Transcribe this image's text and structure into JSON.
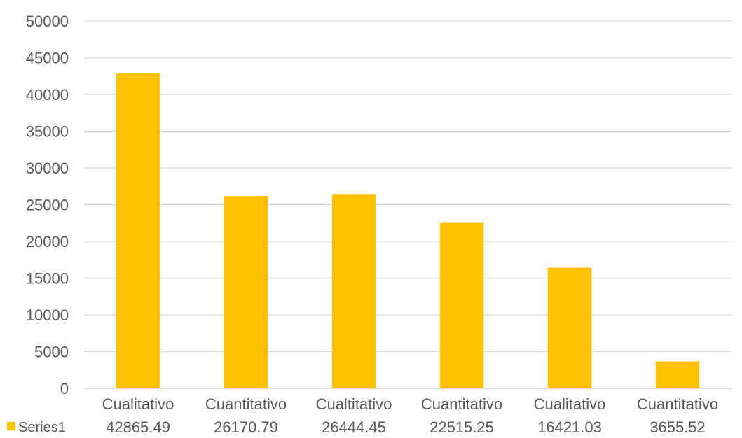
{
  "chart_data": {
    "type": "bar",
    "categories": [
      "Cualitativo",
      "Cuantitativo",
      "Cualtitativo",
      "Cuantitativo",
      "Cualitativo",
      "Cuantitativo"
    ],
    "series": [
      {
        "name": "Series1",
        "values": [
          42865.49,
          26170.79,
          26444.45,
          22515.25,
          16421.03,
          3655.52
        ],
        "value_labels": [
          "42865.49",
          "26170.79",
          "26444.45",
          "22515.25",
          "16421.03",
          "3655.52"
        ],
        "color": "#FFC000"
      }
    ],
    "yticks": [
      "0",
      "5000",
      "10000",
      "15000",
      "20000",
      "25000",
      "30000",
      "35000",
      "40000",
      "45000",
      "50000"
    ],
    "ylim": [
      0,
      50000
    ],
    "grid": true,
    "legend": "data-table-left",
    "colors": {
      "bar": "#FFC000",
      "grid": "#D9D9D9",
      "text": "#595959"
    }
  }
}
